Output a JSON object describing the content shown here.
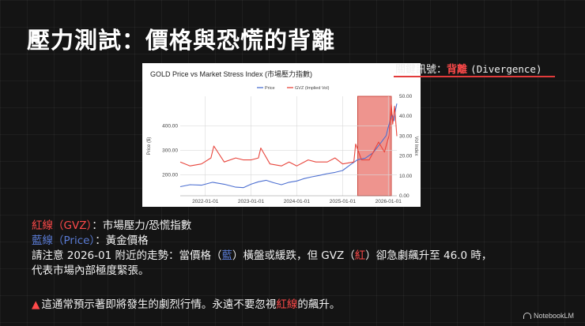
{
  "slide": {
    "title": "壓力測試：價格與恐慌的背離",
    "callout": {
      "prefix": "關鍵訊號：",
      "highlight": "背離",
      "suffix": "(Divergence)"
    },
    "legend_lines": {
      "gvz_label": "紅線（GVZ）",
      "gvz_desc": "：市場壓力/恐慌指數",
      "price_label": "藍線（Price）",
      "price_desc": "：黃金價格"
    },
    "note": {
      "part1": "請注意 2026-01 附近的走勢：當價格（",
      "blue_word": "藍",
      "part2": "）橫盤或緩跌，但 GVZ（",
      "red_word": "紅",
      "part3": "）卻急劇飆升至 46.0 時，",
      "line2": "代表市場內部極度緊張。"
    },
    "warning": {
      "icon": "warning-triangle",
      "text1": "這通常預示著即將發生的劇烈行情。永遠不要忽視",
      "red_text": "紅線",
      "text2": "的飆升。"
    },
    "footer": {
      "brand": "NotebookLM"
    }
  },
  "chart_data": {
    "type": "line",
    "title": "GOLD Price vs Market Stress Index (市場壓力指數)",
    "xlabel": "",
    "ylabel": "Price ($)",
    "ylabel_right": "Vol Index",
    "x_ticks": [
      "2022-01-01",
      "2023-01-01",
      "2024-01-01",
      "2025-01-01",
      "2026-01-01"
    ],
    "y_ticks": [
      200,
      300,
      400
    ],
    "y_tick_labels": [
      "200.00",
      "300.00",
      "400.00"
    ],
    "y_right_ticks": [
      0,
      10,
      20,
      30,
      40,
      50
    ],
    "y_right_tick_labels": [
      "0.00",
      "10.00",
      "20.00",
      "30.00",
      "40.00",
      "50.00"
    ],
    "ylim": [
      115,
      520
    ],
    "ylim_right": [
      0,
      50
    ],
    "xlim": [
      "2021-06-15",
      "2026-03-10"
    ],
    "grid": true,
    "legend_position": "top-center",
    "highlight_region": {
      "x_start": "2025-05-01",
      "x_end": "2026-01-25",
      "color": "#e03c31"
    },
    "series": [
      {
        "name": "Price",
        "axis": "left",
        "color": "#4c6fd1",
        "x": [
          "2021-06-15",
          "2021-09-01",
          "2021-12-01",
          "2022-03-01",
          "2022-06-01",
          "2022-09-01",
          "2022-11-01",
          "2023-01-01",
          "2023-03-01",
          "2023-05-01",
          "2023-07-01",
          "2023-09-01",
          "2023-11-01",
          "2024-01-01",
          "2024-03-01",
          "2024-05-01",
          "2024-07-01",
          "2024-09-01",
          "2024-11-01",
          "2025-01-01",
          "2025-03-01",
          "2025-05-01",
          "2025-07-01",
          "2025-09-01",
          "2025-11-01",
          "2025-12-15",
          "2026-01-01",
          "2026-01-20",
          "2026-02-01",
          "2026-02-15",
          "2026-03-01",
          "2026-03-10"
        ],
        "values": [
          152,
          160,
          158,
          170,
          162,
          150,
          148,
          162,
          172,
          178,
          168,
          160,
          170,
          175,
          185,
          192,
          198,
          205,
          210,
          218,
          240,
          262,
          268,
          290,
          330,
          360,
          395,
          430,
          445,
          420,
          470,
          490
        ]
      },
      {
        "name": "GVZ (Implied Vol)",
        "axis": "right",
        "color": "#e8453c",
        "x": [
          "2021-06-15",
          "2021-09-01",
          "2021-12-01",
          "2022-02-15",
          "2022-03-10",
          "2022-06-01",
          "2022-09-01",
          "2022-11-01",
          "2023-01-01",
          "2023-03-01",
          "2023-03-20",
          "2023-06-01",
          "2023-09-01",
          "2023-11-01",
          "2024-01-01",
          "2024-04-01",
          "2024-06-01",
          "2024-09-01",
          "2024-11-01",
          "2025-01-01",
          "2025-04-01",
          "2025-04-15",
          "2025-06-01",
          "2025-08-01",
          "2025-10-15",
          "2025-12-01",
          "2026-01-05",
          "2026-01-25",
          "2026-02-05",
          "2026-02-20",
          "2026-03-10"
        ],
        "values": [
          17,
          15,
          16,
          19,
          25,
          17,
          19,
          18,
          18,
          19,
          24,
          16,
          15,
          17,
          15,
          18,
          17,
          17,
          19,
          16,
          17,
          26,
          18,
          18,
          27,
          22,
          30,
          46,
          36,
          45,
          30
        ]
      }
    ]
  }
}
